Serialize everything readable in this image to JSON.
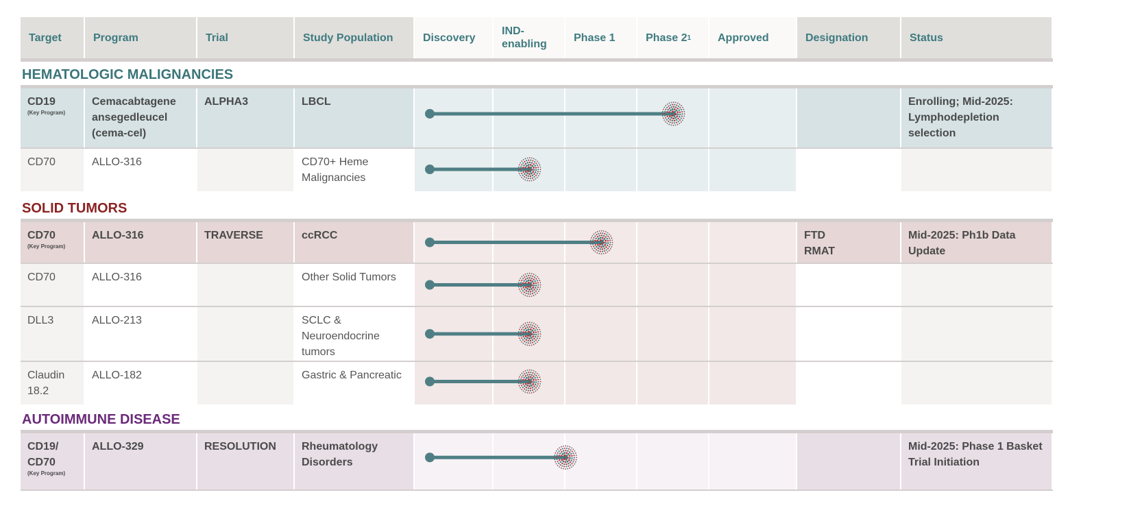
{
  "colors": {
    "teal": "#3f7b80",
    "bar": "#4f7f85",
    "burst_red": "#b5373c",
    "hemat": "#3b7579",
    "solid": "#8b2323",
    "auto": "#6b2a7a"
  },
  "header": [
    "Target",
    "Program",
    "Trial",
    "Study Population",
    "Discovery",
    "IND-\nenabling",
    "Phase 1",
    "Phase 2",
    "Approved",
    "Designation",
    "Status"
  ],
  "header_footnote": "1",
  "stages": [
    "Discovery",
    "IND-enabling",
    "Phase 1",
    "Phase 2",
    "Approved"
  ],
  "sections": [
    {
      "title": "HEMATOLOGIC MALIGNANCIES",
      "color": "#3b7579",
      "theme": {
        "key_text": "#d6e2e4",
        "key_stage": "#e7eeef",
        "alt": "#f4f3f2",
        "plain": "#ffffff",
        "stage": "#e7eeef"
      },
      "rows": [
        {
          "key": true,
          "target": "CD19",
          "target_note": "(Key Program)",
          "program": "Cemacabtagene ansegedleucel (cema-cel)",
          "trial": "ALPHA3",
          "population": "LBCL",
          "progress_end_stage": 3.5,
          "designation": "",
          "status": "Enrolling; Mid-2025: Lymphodepletion selection",
          "height": 86
        },
        {
          "key": false,
          "target": "CD70",
          "program": "ALLO-316",
          "trial": "",
          "population": "CD70+ Heme Malignancies",
          "progress_end_stage": 1.5,
          "designation": "",
          "status": "",
          "height": 60
        }
      ]
    },
    {
      "title": "SOLID TUMORS",
      "color": "#8b2323",
      "theme": {
        "key_text": "#e6d6d6",
        "key_stage": "#f2e9e8",
        "alt": "#f4f3f2",
        "plain": "#ffffff",
        "stage": "#f1e8e7"
      },
      "rows": [
        {
          "key": true,
          "target": "CD70",
          "target_note": "(Key Program)",
          "program": "ALLO-316",
          "trial": "TRAVERSE",
          "population": "ccRCC",
          "progress_end_stage": 2.5,
          "designation": "FTD\nRMAT",
          "status": "Mid-2025: Ph1b Data Update",
          "height": 59
        },
        {
          "key": false,
          "target": "CD70",
          "program": "ALLO-316",
          "trial": "",
          "population": "Other Solid Tumors",
          "progress_end_stage": 1.5,
          "designation": "",
          "status": "",
          "height": 61
        },
        {
          "key": false,
          "target": "DLL3",
          "program": "ALLO-213",
          "trial": "",
          "population": "SCLC & Neuroendocrine tumors",
          "progress_end_stage": 1.5,
          "designation": "",
          "status": "",
          "height": 78
        },
        {
          "key": false,
          "target": "Claudin 18.2",
          "program": "ALLO-182",
          "trial": "",
          "population": "Gastric & Pancreatic",
          "progress_end_stage": 1.5,
          "designation": "",
          "status": "",
          "height": 57
        }
      ]
    },
    {
      "title": "AUTOIMMUNE DISEASE",
      "color": "#6b2a7a",
      "theme": {
        "key_text": "#e8dee6",
        "key_stage": "#f7f2f6",
        "alt": "#f4f3f2",
        "plain": "#ffffff",
        "stage": "#f7f2f6"
      },
      "rows": [
        {
          "key": true,
          "target": "CD19/ CD70",
          "target_note": "(Key Program)",
          "program": "ALLO-329",
          "trial": "RESOLUTION",
          "population": "Rheumatology Disorders",
          "progress_end_stage": 2.0,
          "designation": "",
          "status": "Mid-2025: Phase 1 Basket Trial Initiation",
          "height": 82
        }
      ]
    }
  ]
}
